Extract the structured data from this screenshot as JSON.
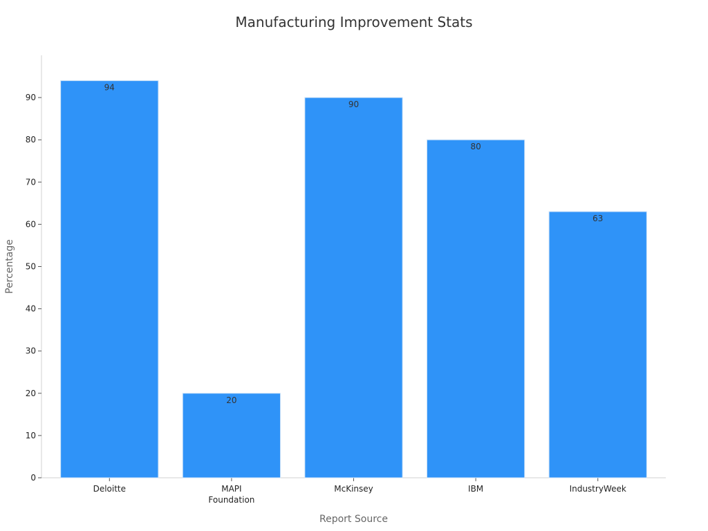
{
  "chart_data": {
    "type": "bar",
    "title": "Manufacturing Improvement Stats",
    "xlabel": "Report Source",
    "ylabel": "Percentage",
    "categories": [
      [
        "Deloitte"
      ],
      [
        "MAPI",
        "Foundation"
      ],
      [
        "McKinsey"
      ],
      [
        "IBM"
      ],
      [
        "IndustryWeek"
      ]
    ],
    "values": [
      94,
      20,
      90,
      80,
      63
    ],
    "ylim": [
      0,
      100
    ],
    "yticks": [
      0,
      10,
      20,
      30,
      40,
      50,
      60,
      70,
      80,
      90
    ],
    "grid": false,
    "legend": "none",
    "bar_color": "#2f93f8",
    "bar_edge_color": "#cfe3f7"
  }
}
